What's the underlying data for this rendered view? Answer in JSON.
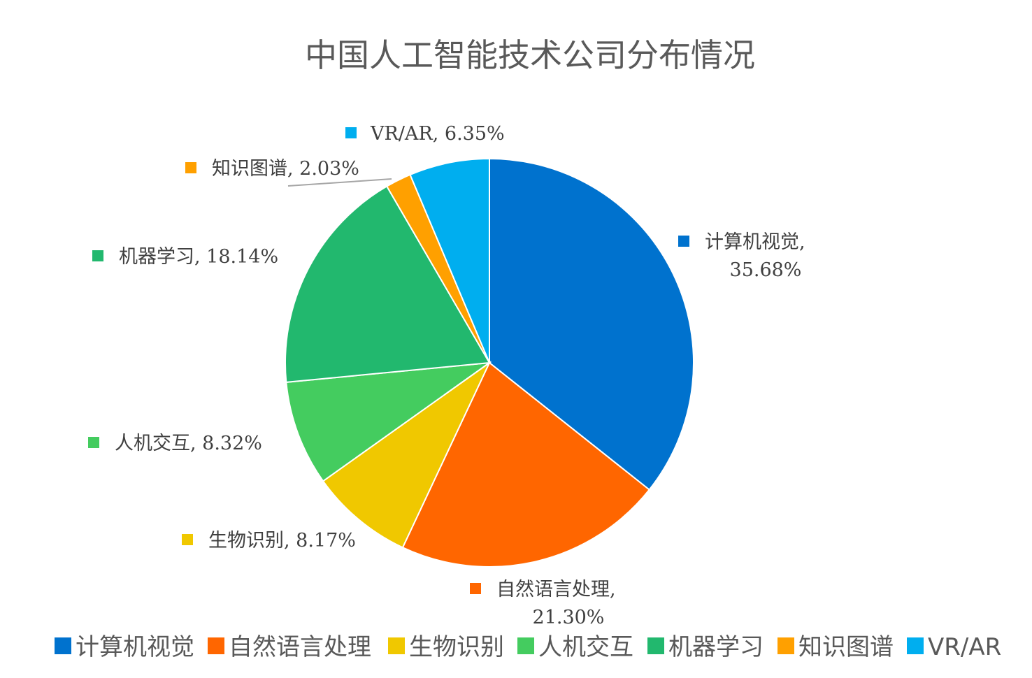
{
  "chart_data": {
    "type": "pie",
    "title": "中国人工智能技术公司分布情况",
    "slices": [
      {
        "name": "计算机视觉",
        "value": 35.68,
        "label_line1": "计算机视觉,",
        "label_line2": "35.68%",
        "color": "#0072CE"
      },
      {
        "name": "自然语言处理",
        "value": 21.3,
        "label_line1": "自然语言处理,",
        "label_line2": "21.30%",
        "color": "#FF6600"
      },
      {
        "name": "生物识别",
        "value": 8.17,
        "label_line1": "生物识别, 8.17%",
        "label_line2": "",
        "color": "#F0C800"
      },
      {
        "name": "人机交互",
        "value": 8.32,
        "label_line1": "人机交互, 8.32%",
        "label_line2": "",
        "color": "#44CC5F"
      },
      {
        "name": "机器学习",
        "value": 18.14,
        "label_line1": "机器学习, 18.14%",
        "label_line2": "",
        "color": "#22B86E"
      },
      {
        "name": "知识图谱",
        "value": 2.03,
        "label_line1": "知识图谱, 2.03%",
        "label_line2": "",
        "color": "#FFA000"
      },
      {
        "name": "VR/AR",
        "value": 6.35,
        "label_line1": "VR/AR, 6.35%",
        "label_line2": "",
        "color": "#00AEEF"
      }
    ],
    "legend_position": "bottom"
  }
}
